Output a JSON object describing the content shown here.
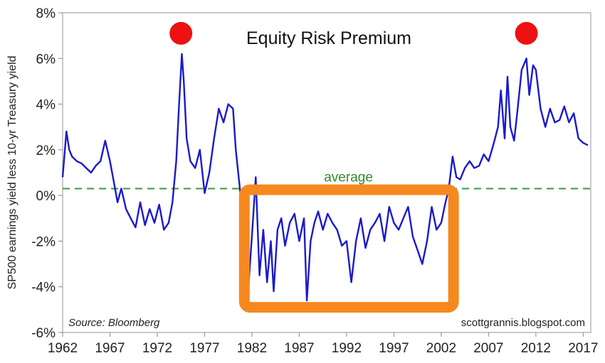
{
  "chart_data": {
    "type": "line",
    "title": "Equity Risk Premium",
    "ylabel": "SP500 earnings yield less 10-yr Treasury yield",
    "xlabel": "",
    "xlim": [
      1962,
      2017.8
    ],
    "ylim": [
      -6,
      8
    ],
    "x_ticks": [
      "1962",
      "1967",
      "1972",
      "1977",
      "1982",
      "1987",
      "1992",
      "1997",
      "2002",
      "2007",
      "2012",
      "2017"
    ],
    "y_ticks": [
      "8%",
      "6%",
      "4%",
      "2%",
      "0%",
      "-2%",
      "-4%",
      "-6%"
    ],
    "source": "Source: Bloomberg",
    "credit": "scottgrannis.blogspot.com",
    "colors": {
      "line": "#1a1acc",
      "average": "#3a9a3a",
      "box": "#f5891f",
      "marker": "#ee1111",
      "frame": "#b8b8b8"
    },
    "average": {
      "label": "average",
      "value": 0.3
    },
    "markers": [
      {
        "x": 1974.5,
        "y": 7.1
      },
      {
        "x": 2011.0,
        "y": 7.1
      }
    ],
    "highlight_box": {
      "x_range": [
        1981.2,
        2003.3
      ],
      "y_range": [
        -4.9,
        0.25
      ]
    },
    "series": [
      {
        "x": [
          1962,
          1962.4,
          1962.7,
          1963,
          1963.5,
          1964,
          1964.5,
          1965,
          1965.5,
          1966,
          1966.5,
          1967,
          1967.5,
          1967.8,
          1968.2,
          1968.7,
          1969.2,
          1969.7,
          1970.2,
          1970.7,
          1971.2,
          1971.7,
          1972.2,
          1972.7,
          1973.2,
          1973.6,
          1974,
          1974.3,
          1974.6,
          1974.8,
          1975.1,
          1975.5,
          1976,
          1976.5,
          1977,
          1977.5,
          1978,
          1978.5,
          1979,
          1979.5,
          1980,
          1980.3,
          1980.7,
          1981,
          1981.3,
          1981.6,
          1982,
          1982.4,
          1982.8,
          1983.2,
          1983.6,
          1984,
          1984.3,
          1984.7,
          1985.1,
          1985.5,
          1986,
          1986.5,
          1987,
          1987.5,
          1987.8,
          1988.2,
          1988.6,
          1989,
          1989.5,
          1990,
          1990.5,
          1991,
          1991.5,
          1992,
          1992.5,
          1993,
          1993.5,
          1994,
          1994.5,
          1995,
          1995.5,
          1996,
          1996.5,
          1997,
          1997.5,
          1998,
          1998.5,
          1999,
          1999.5,
          2000,
          2000.5,
          2001,
          2001.5,
          2002,
          2002.4,
          2002.8,
          2003.2,
          2003.6,
          2004,
          2004.5,
          2005,
          2005.5,
          2006,
          2006.5,
          2007,
          2007.5,
          2008,
          2008.3,
          2008.7,
          2009,
          2009.3,
          2009.7,
          2010,
          2010.5,
          2011,
          2011.3,
          2011.7,
          2012,
          2012.5,
          2013,
          2013.5,
          2014,
          2014.5,
          2015,
          2015.5,
          2016,
          2016.5,
          2017,
          2017.5
        ],
        "y": [
          0.8,
          2.8,
          2.0,
          1.7,
          1.5,
          1.4,
          1.2,
          1.0,
          1.3,
          1.5,
          2.4,
          1.5,
          0.4,
          -0.3,
          0.3,
          -0.6,
          -1.0,
          -1.4,
          -0.3,
          -1.3,
          -0.6,
          -1.2,
          -0.4,
          -1.5,
          -1.2,
          -0.3,
          1.5,
          4.0,
          6.2,
          5.0,
          2.5,
          1.5,
          1.2,
          2.0,
          0.1,
          1.0,
          2.5,
          3.8,
          3.2,
          4.0,
          3.8,
          2.0,
          0.4,
          -1.0,
          -2.5,
          -4.2,
          -1.8,
          0.8,
          -3.5,
          -1.5,
          -3.8,
          -2.0,
          -4.2,
          -1.5,
          -1.0,
          -2.2,
          -1.2,
          -0.8,
          -2.0,
          -1.0,
          -4.6,
          -2.0,
          -1.2,
          -0.7,
          -1.5,
          -0.8,
          -1.2,
          -1.5,
          -2.2,
          -2.0,
          -3.8,
          -2.0,
          -1.0,
          -2.3,
          -1.5,
          -1.2,
          -0.8,
          -2.0,
          -0.5,
          -1.2,
          -1.5,
          -1.0,
          -0.5,
          -1.8,
          -2.4,
          -3.0,
          -2.0,
          -0.5,
          -1.5,
          -1.2,
          -0.4,
          0.3,
          1.7,
          0.8,
          0.7,
          1.2,
          1.5,
          1.2,
          1.3,
          1.8,
          1.5,
          2.2,
          3.0,
          4.6,
          2.5,
          5.2,
          3.0,
          2.4,
          3.5,
          5.5,
          6.0,
          4.4,
          5.7,
          5.5,
          3.8,
          3.0,
          3.8,
          3.2,
          3.3,
          3.9,
          3.2,
          3.6,
          2.5,
          2.3,
          2.2
        ]
      }
    ]
  }
}
